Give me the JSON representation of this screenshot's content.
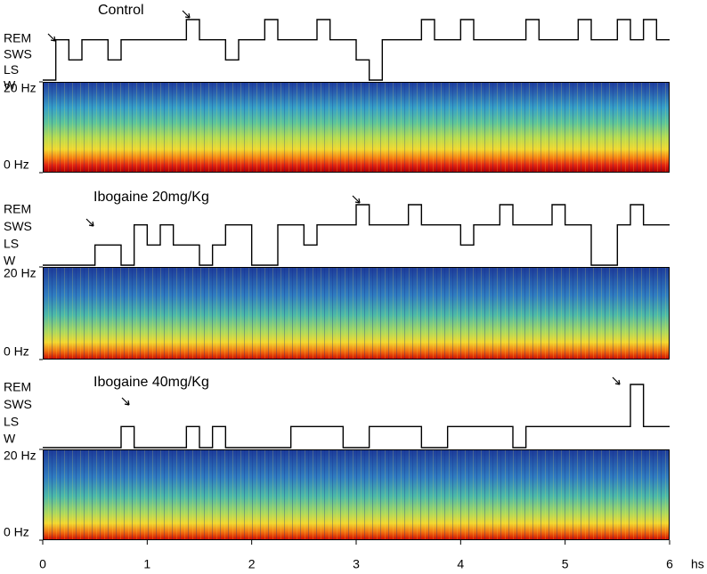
{
  "figure": {
    "x_axis": {
      "xlim": [
        0,
        6
      ],
      "xticks": [
        0,
        1,
        2,
        3,
        4,
        5,
        6
      ],
      "label": "hs"
    },
    "hypnogram_axis": {
      "ylim": [
        0,
        3
      ],
      "yticks": [
        {
          "value": 3,
          "label": "REM"
        },
        {
          "value": 2,
          "label": "SWS"
        },
        {
          "value": 1,
          "label": "LS"
        },
        {
          "value": 0,
          "label": "W"
        }
      ]
    },
    "spectrogram_axis": {
      "ylim": [
        0,
        20
      ],
      "yticks": [
        {
          "value": 20,
          "label": "20 Hz"
        },
        {
          "value": 0,
          "label": "0 Hz"
        }
      ]
    },
    "panels": [
      {
        "title": "Control",
        "type": "step",
        "values": [
          0,
          2,
          1,
          2,
          2,
          1,
          2,
          2,
          2,
          2,
          2,
          3,
          2,
          2,
          1,
          2,
          2,
          3,
          2,
          2,
          2,
          3,
          2,
          2,
          1,
          0,
          2,
          2,
          2,
          3,
          2,
          2,
          3,
          2,
          2,
          2,
          2,
          3,
          2,
          2,
          2,
          3,
          2,
          2,
          3,
          2,
          3,
          2
        ]
      },
      {
        "title": "Ibogaine 20mg/Kg",
        "type": "step",
        "values": [
          0,
          0,
          0,
          0,
          1,
          1,
          0,
          2,
          1,
          2,
          1,
          1,
          0,
          1,
          2,
          2,
          0,
          0,
          2,
          2,
          1,
          2,
          2,
          2,
          3,
          2,
          2,
          2,
          3,
          2,
          2,
          2,
          1,
          2,
          2,
          3,
          2,
          2,
          2,
          3,
          2,
          2,
          0,
          0,
          2,
          3,
          2,
          2
        ]
      },
      {
        "title": "Ibogaine 40mg/Kg",
        "type": "step",
        "values": [
          0,
          0,
          0,
          0,
          0,
          0,
          1,
          0,
          0,
          0,
          0,
          1,
          0,
          1,
          0,
          0,
          0,
          0,
          0,
          1,
          1,
          1,
          1,
          0,
          0,
          1,
          1,
          1,
          1,
          0,
          0,
          1,
          1,
          1,
          1,
          1,
          0,
          1,
          1,
          1,
          1,
          1,
          1,
          1,
          1,
          3,
          1,
          1
        ]
      }
    ]
  }
}
